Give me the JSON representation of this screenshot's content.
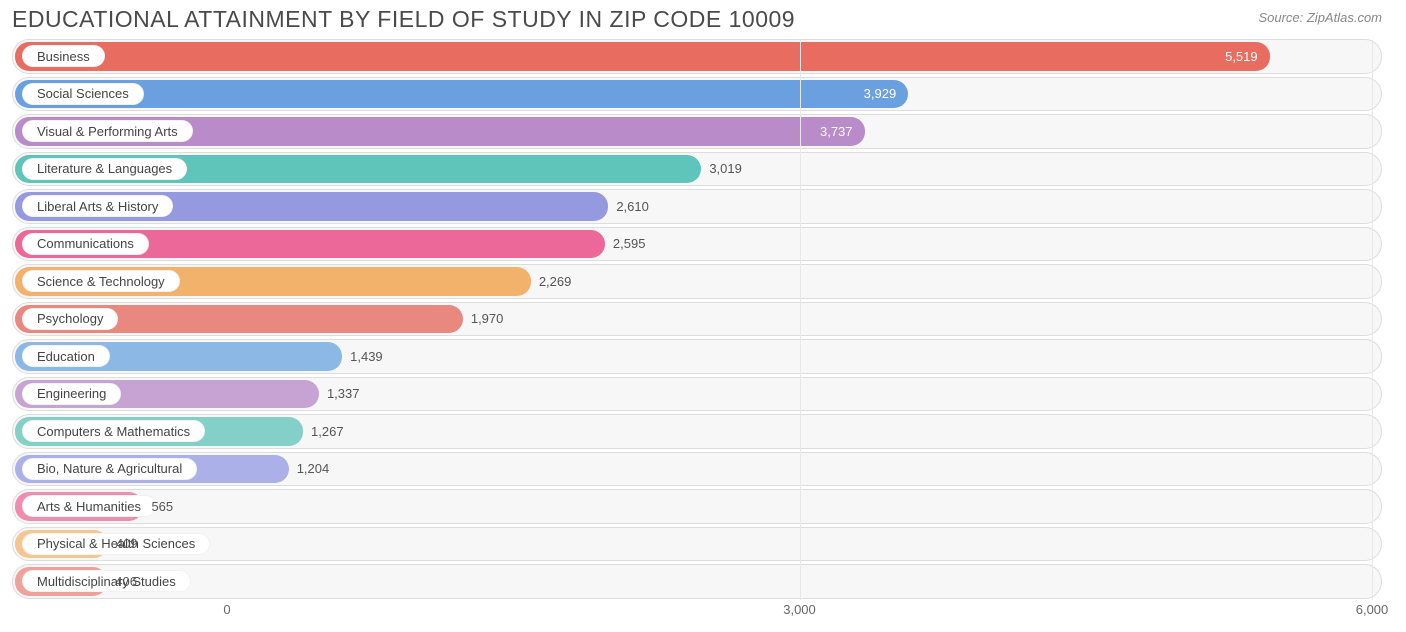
{
  "header": {
    "title": "EDUCATIONAL ATTAINMENT BY FIELD OF STUDY IN ZIP CODE 10009",
    "source": "Source: ZipAtlas.com"
  },
  "chart": {
    "type": "bar-horizontal",
    "x_min": 0,
    "x_max": 6000,
    "x_ticks": [
      {
        "value": 0,
        "label": "0"
      },
      {
        "value": 3000,
        "label": "3,000"
      },
      {
        "value": 6000,
        "label": "6,000"
      }
    ],
    "label_origin_value": 0,
    "track_border_color": "#dddddd",
    "track_bg_color": "#f7f7f7",
    "bars": [
      {
        "label": "Business",
        "value": 5519,
        "display": "5,519",
        "color": "#e86c60",
        "value_inside": true
      },
      {
        "label": "Social Sciences",
        "value": 3929,
        "display": "3,929",
        "color": "#6a9fe0",
        "value_inside": true
      },
      {
        "label": "Visual & Performing Arts",
        "value": 3737,
        "display": "3,737",
        "color": "#b98bc9",
        "value_inside": true
      },
      {
        "label": "Literature & Languages",
        "value": 3019,
        "display": "3,019",
        "color": "#5fc5bb",
        "value_inside": false
      },
      {
        "label": "Liberal Arts & History",
        "value": 2610,
        "display": "2,610",
        "color": "#9499e0",
        "value_inside": false
      },
      {
        "label": "Communications",
        "value": 2595,
        "display": "2,595",
        "color": "#ec6898",
        "value_inside": false
      },
      {
        "label": "Science & Technology",
        "value": 2269,
        "display": "2,269",
        "color": "#f3b26b",
        "value_inside": false
      },
      {
        "label": "Psychology",
        "value": 1970,
        "display": "1,970",
        "color": "#e8887f",
        "value_inside": false
      },
      {
        "label": "Education",
        "value": 1439,
        "display": "1,439",
        "color": "#8cb8e6",
        "value_inside": false
      },
      {
        "label": "Engineering",
        "value": 1337,
        "display": "1,337",
        "color": "#c7a3d4",
        "value_inside": false
      },
      {
        "label": "Computers & Mathematics",
        "value": 1267,
        "display": "1,267",
        "color": "#82d0c8",
        "value_inside": false
      },
      {
        "label": "Bio, Nature & Agricultural",
        "value": 1204,
        "display": "1,204",
        "color": "#acb0e8",
        "value_inside": false
      },
      {
        "label": "Arts & Humanities",
        "value": 565,
        "display": "565",
        "color": "#f08cae",
        "value_inside": false
      },
      {
        "label": "Physical & Health Sciences",
        "value": 409,
        "display": "409",
        "color": "#f6c590",
        "value_inside": false
      },
      {
        "label": "Multidisciplinary Studies",
        "value": 406,
        "display": "406",
        "color": "#eda29b",
        "value_inside": false
      }
    ]
  }
}
